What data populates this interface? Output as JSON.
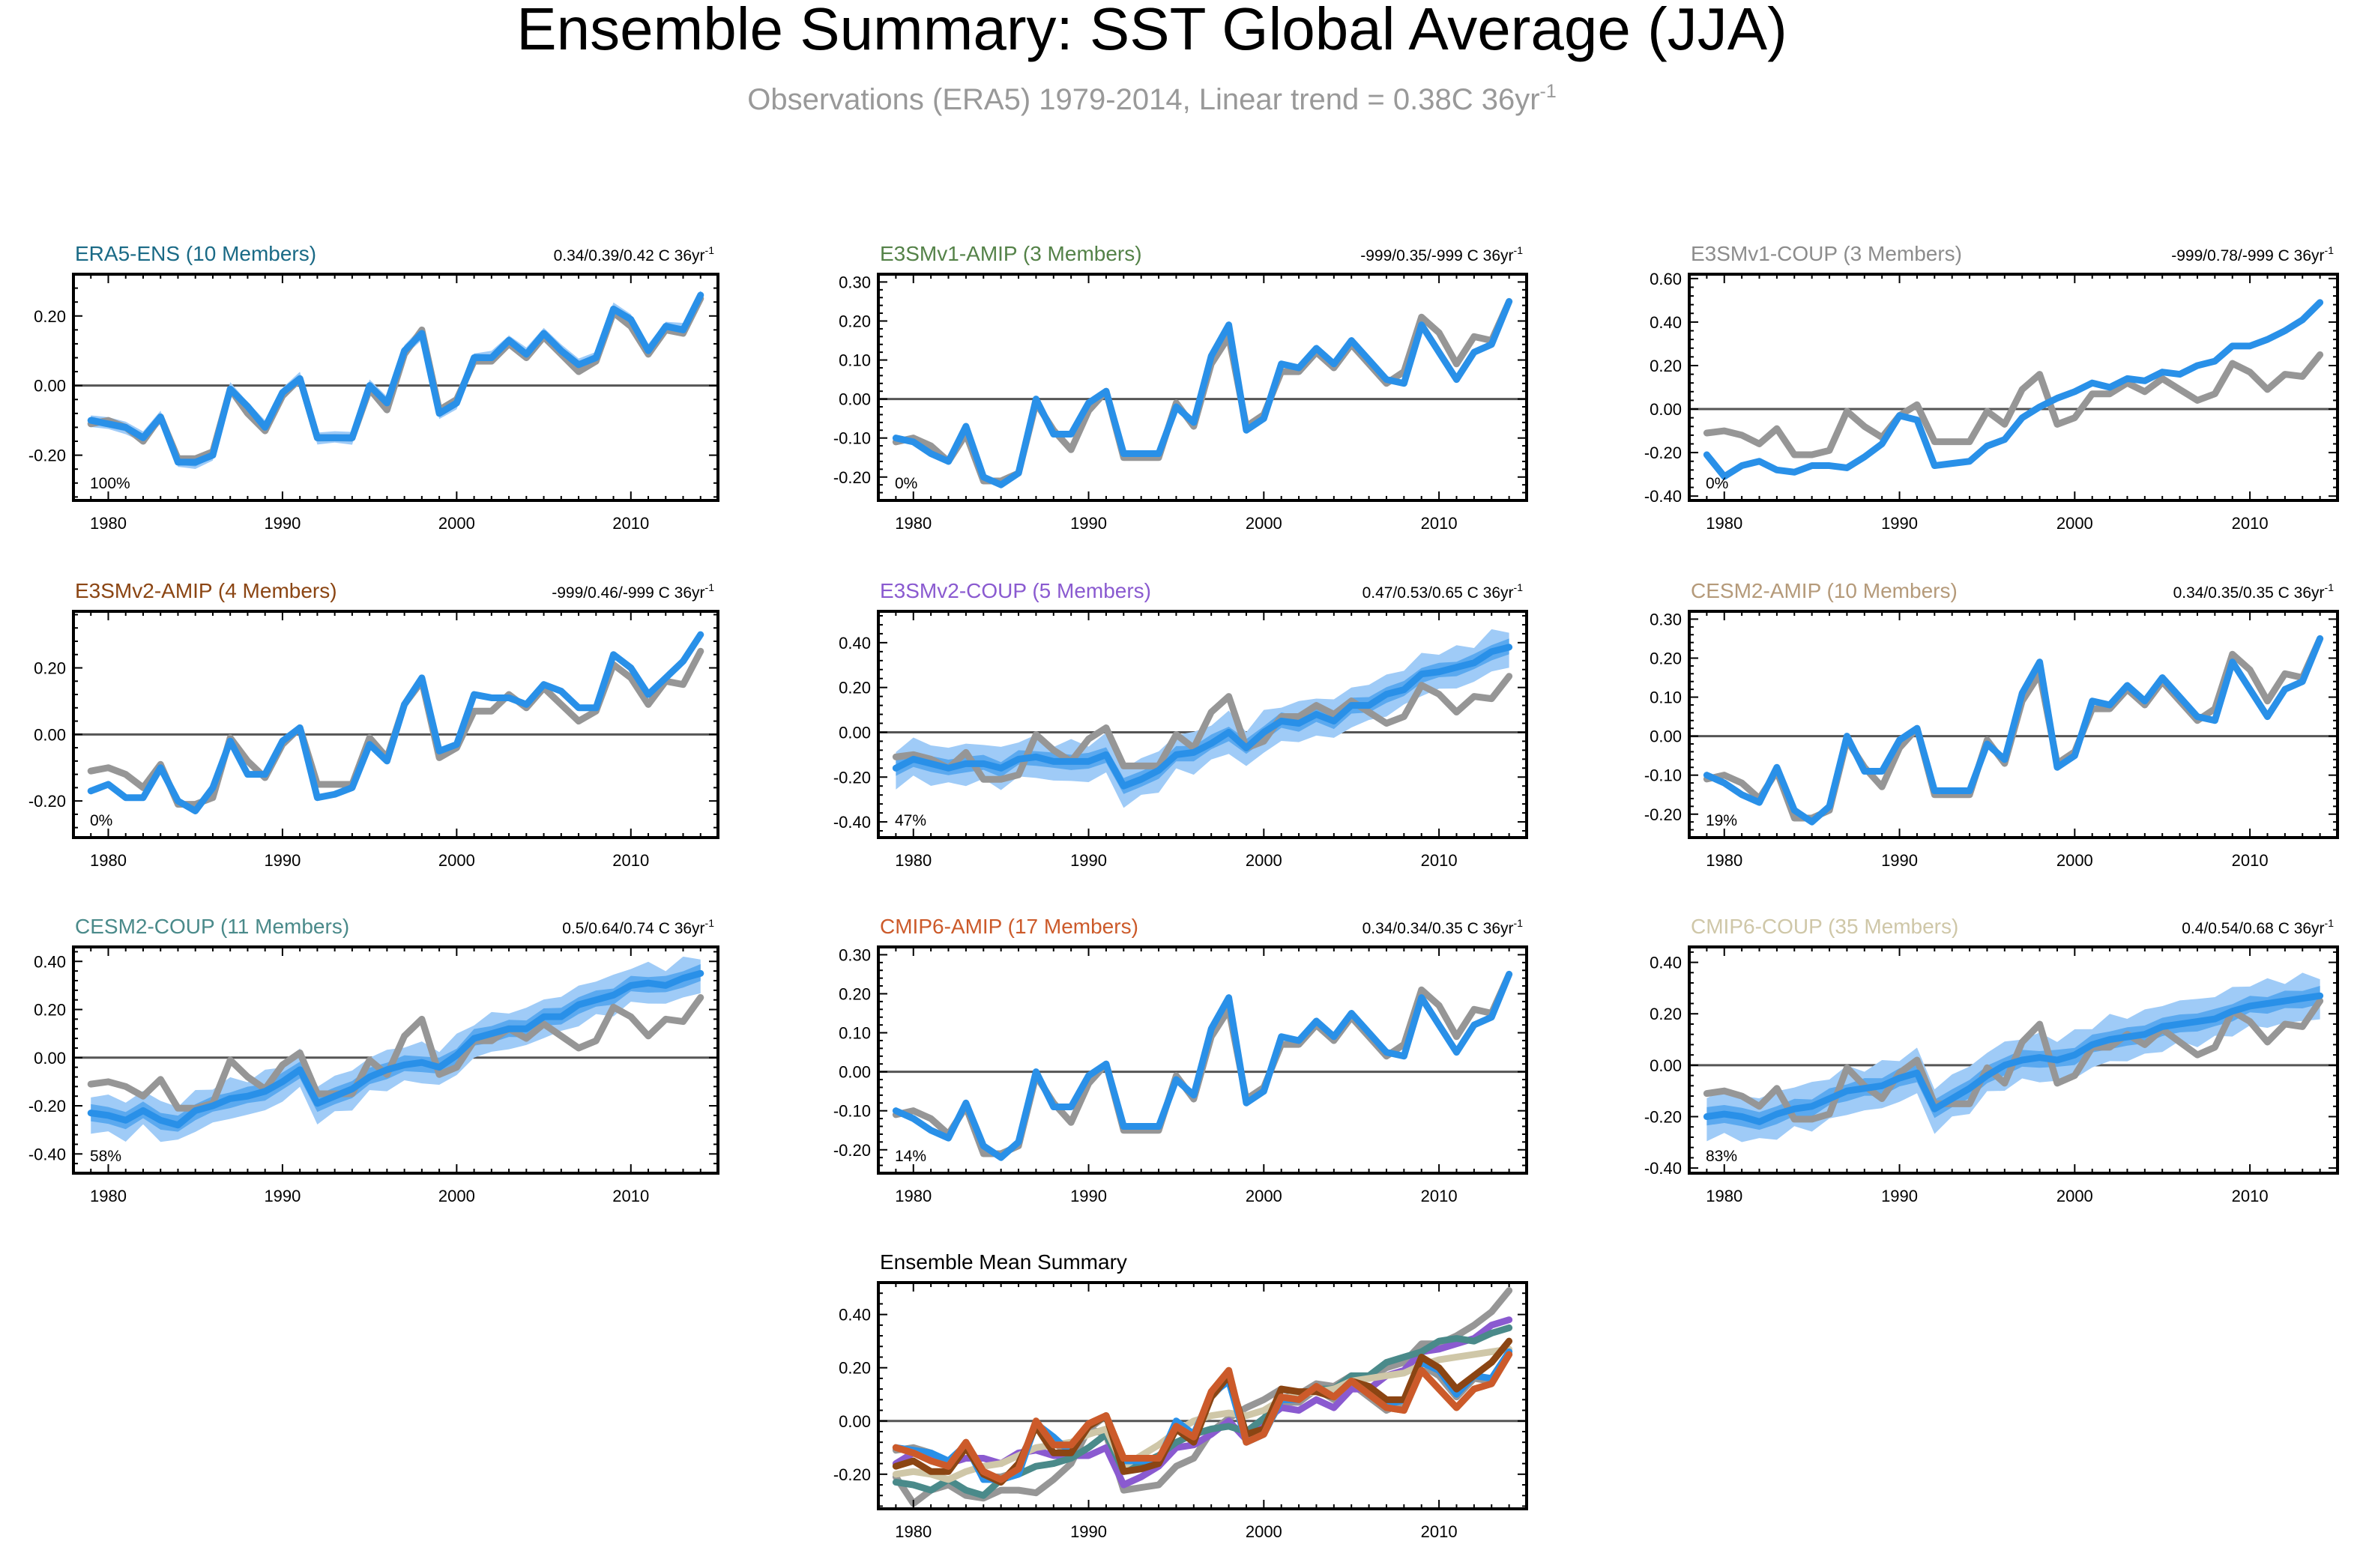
{
  "title": "Ensemble Summary: SST Global Average (JJA)",
  "subtitle": {
    "text": "Observations (ERA5) 1979-2014, Linear trend = 0.38C 36yr",
    "sup": "-1"
  },
  "chart_data": [
    {
      "type": "line",
      "title": "ERA5-ENS (10 Members)",
      "title_color": "#1a6a86",
      "trend": "0.34/0.39/0.42 C 36yr",
      "trend_sup": "-1",
      "percent": "100%",
      "xlim": [
        1978,
        2015
      ],
      "ylim": [
        -0.33,
        0.32
      ],
      "xticks": [
        1980,
        1990,
        2000,
        2010
      ],
      "yticks": [
        -0.2,
        0.0,
        0.2
      ],
      "obs": "obs",
      "mean": "era5_mean",
      "band": {
        "w": 0.02,
        "s": 0.012
      }
    },
    {
      "type": "line",
      "title": "E3SMv1-AMIP (3 Members)",
      "title_color": "#548248",
      "trend": "-999/0.35/-999 C 36yr",
      "trend_sup": "-1",
      "percent": "0%",
      "xlim": [
        1978,
        2015
      ],
      "ylim": [
        -0.26,
        0.32
      ],
      "xticks": [
        1980,
        1990,
        2000,
        2010
      ],
      "yticks": [
        -0.2,
        -0.1,
        0.0,
        0.1,
        0.2,
        0.3
      ],
      "obs": "obs",
      "mean": "e3v1amip",
      "band": null
    },
    {
      "type": "line",
      "title": "E3SMv1-COUP (3 Members)",
      "title_color": "#8c8c8c",
      "trend": "-999/0.78/-999 C 36yr",
      "trend_sup": "-1",
      "percent": "0%",
      "xlim": [
        1978,
        2015
      ],
      "ylim": [
        -0.42,
        0.62
      ],
      "xticks": [
        1980,
        1990,
        2000,
        2010
      ],
      "yticks": [
        -0.4,
        -0.2,
        0.0,
        0.2,
        0.4,
        0.6
      ],
      "obs": "obs",
      "mean": "e3v1coup",
      "band": null
    },
    {
      "type": "line",
      "title": "E3SMv2-AMIP (4 Members)",
      "title_color": "#8b4513",
      "trend": "-999/0.46/-999 C 36yr",
      "trend_sup": "-1",
      "percent": "0%",
      "xlim": [
        1978,
        2015
      ],
      "ylim": [
        -0.31,
        0.37
      ],
      "xticks": [
        1980,
        1990,
        2000,
        2010
      ],
      "yticks": [
        -0.2,
        0.0,
        0.2
      ],
      "obs": "obs",
      "mean": "e3v2amip",
      "band": null
    },
    {
      "type": "line",
      "title": "E3SMv2-COUP (5 Members)",
      "title_color": "#8a5ad0",
      "trend": "0.47/0.53/0.65 C 36yr",
      "trend_sup": "-1",
      "percent": "47%",
      "xlim": [
        1978,
        2015
      ],
      "ylim": [
        -0.47,
        0.54
      ],
      "xticks": [
        1980,
        1990,
        2000,
        2010
      ],
      "yticks": [
        -0.4,
        -0.2,
        0.0,
        0.2,
        0.4
      ],
      "obs": "obs",
      "mean": "e3v2coup",
      "band": {
        "w": 0.1,
        "s": 0.04
      }
    },
    {
      "type": "line",
      "title": "CESM2-AMIP (10 Members)",
      "title_color": "#b59a7a",
      "trend": "0.34/0.35/0.35 C 36yr",
      "trend_sup": "-1",
      "percent": "19%",
      "xlim": [
        1978,
        2015
      ],
      "ylim": [
        -0.26,
        0.32
      ],
      "xticks": [
        1980,
        1990,
        2000,
        2010
      ],
      "yticks": [
        -0.2,
        -0.1,
        0.0,
        0.1,
        0.2,
        0.3
      ],
      "obs": "obs",
      "mean": "cesmamip",
      "band": null
    },
    {
      "type": "line",
      "title": "CESM2-COUP (11 Members)",
      "title_color": "#4a8a8a",
      "trend": "0.5/0.64/0.74 C 36yr",
      "trend_sup": "-1",
      "percent": "58%",
      "xlim": [
        1978,
        2015
      ],
      "ylim": [
        -0.48,
        0.46
      ],
      "xticks": [
        1980,
        1990,
        2000,
        2010
      ],
      "yticks": [
        -0.4,
        -0.2,
        0.0,
        0.2,
        0.4
      ],
      "obs": "obs",
      "mean": "cesmcoup",
      "band": {
        "w": 0.09,
        "s": 0.04
      }
    },
    {
      "type": "line",
      "title": "CMIP6-AMIP (17 Members)",
      "title_color": "#cc5a2a",
      "trend": "0.34/0.34/0.35 C 36yr",
      "trend_sup": "-1",
      "percent": "14%",
      "xlim": [
        1978,
        2015
      ],
      "ylim": [
        -0.26,
        0.32
      ],
      "xticks": [
        1980,
        1990,
        2000,
        2010
      ],
      "yticks": [
        -0.2,
        -0.1,
        0.0,
        0.1,
        0.2,
        0.3
      ],
      "obs": "obs",
      "mean": "cmipamip",
      "band": null
    },
    {
      "type": "line",
      "title": "CMIP6-COUP (35 Members)",
      "title_color": "#cfc7a8",
      "trend": "0.4/0.54/0.68 C 36yr",
      "trend_sup": "-1",
      "percent": "83%",
      "xlim": [
        1978,
        2015
      ],
      "ylim": [
        -0.42,
        0.46
      ],
      "xticks": [
        1980,
        1990,
        2000,
        2010
      ],
      "yticks": [
        -0.4,
        -0.2,
        0.0,
        0.2,
        0.4
      ],
      "obs": "obs",
      "mean": "cmipcoup",
      "band": {
        "w": 0.1,
        "s": 0.04
      }
    },
    {
      "type": "line",
      "title": "Ensemble Mean Summary",
      "title_color": "#000000",
      "trend": "",
      "trend_sup": "",
      "percent": "",
      "xlim": [
        1978,
        2015
      ],
      "ylim": [
        -0.33,
        0.52
      ],
      "xticks": [
        1980,
        1990,
        2000,
        2010
      ],
      "yticks": [
        -0.2,
        0.0,
        0.2,
        0.4
      ],
      "summary": [
        "obs",
        "e3v1coup",
        "e3v2coup",
        "cesmcoup",
        "cmipcoup",
        "era5_mean",
        "e3v2amip",
        "cesmamip",
        "cmipamip"
      ]
    }
  ],
  "years": [
    1979,
    1980,
    1981,
    1982,
    1983,
    1984,
    1985,
    1986,
    1987,
    1988,
    1989,
    1990,
    1991,
    1992,
    1993,
    1994,
    1995,
    1996,
    1997,
    1998,
    1999,
    2000,
    2001,
    2002,
    2003,
    2004,
    2005,
    2006,
    2007,
    2008,
    2009,
    2010,
    2011,
    2012,
    2013,
    2014
  ],
  "series_values": {
    "obs": [
      -0.11,
      -0.1,
      -0.12,
      -0.16,
      -0.09,
      -0.21,
      -0.21,
      -0.19,
      -0.01,
      -0.08,
      -0.13,
      -0.03,
      0.02,
      -0.15,
      -0.15,
      -0.15,
      -0.01,
      -0.07,
      0.09,
      0.16,
      -0.07,
      -0.04,
      0.07,
      0.07,
      0.12,
      0.08,
      0.14,
      0.09,
      0.04,
      0.07,
      0.21,
      0.17,
      0.09,
      0.16,
      0.15,
      0.25
    ],
    "era5_mean": [
      -0.1,
      -0.11,
      -0.12,
      -0.15,
      -0.09,
      -0.22,
      -0.22,
      -0.2,
      -0.01,
      -0.06,
      -0.12,
      -0.02,
      0.02,
      -0.15,
      -0.15,
      -0.15,
      0.0,
      -0.05,
      0.1,
      0.15,
      -0.08,
      -0.05,
      0.08,
      0.08,
      0.13,
      0.09,
      0.15,
      0.1,
      0.06,
      0.08,
      0.22,
      0.19,
      0.1,
      0.17,
      0.16,
      0.26
    ],
    "e3v1amip": [
      -0.1,
      -0.11,
      -0.14,
      -0.16,
      -0.07,
      -0.2,
      -0.22,
      -0.19,
      0.0,
      -0.09,
      -0.09,
      -0.01,
      0.02,
      -0.14,
      -0.14,
      -0.14,
      -0.02,
      -0.06,
      0.11,
      0.19,
      -0.08,
      -0.05,
      0.09,
      0.08,
      0.13,
      0.09,
      0.15,
      0.1,
      0.05,
      0.04,
      0.19,
      0.12,
      0.05,
      0.12,
      0.14,
      0.25
    ],
    "e3v1coup": [
      -0.21,
      -0.31,
      -0.26,
      -0.24,
      -0.28,
      -0.29,
      -0.26,
      -0.26,
      -0.27,
      -0.22,
      -0.16,
      -0.03,
      -0.05,
      -0.26,
      -0.25,
      -0.24,
      -0.17,
      -0.14,
      -0.04,
      0.01,
      0.05,
      0.08,
      0.12,
      0.1,
      0.14,
      0.13,
      0.17,
      0.16,
      0.2,
      0.22,
      0.29,
      0.29,
      0.32,
      0.36,
      0.41,
      0.49
    ],
    "e3v2amip": [
      -0.17,
      -0.15,
      -0.19,
      -0.19,
      -0.1,
      -0.2,
      -0.23,
      -0.16,
      -0.02,
      -0.12,
      -0.12,
      -0.02,
      0.02,
      -0.19,
      -0.18,
      -0.16,
      -0.03,
      -0.08,
      0.09,
      0.17,
      -0.05,
      -0.03,
      0.12,
      0.11,
      0.11,
      0.09,
      0.15,
      0.13,
      0.08,
      0.08,
      0.24,
      0.2,
      0.12,
      0.17,
      0.22,
      0.3
    ],
    "e3v2coup": [
      -0.16,
      -0.12,
      -0.14,
      -0.16,
      -0.14,
      -0.14,
      -0.16,
      -0.12,
      -0.11,
      -0.13,
      -0.13,
      -0.13,
      -0.1,
      -0.24,
      -0.21,
      -0.17,
      -0.1,
      -0.09,
      -0.05,
      0.0,
      -0.07,
      0.0,
      0.05,
      0.04,
      0.08,
      0.05,
      0.12,
      0.12,
      0.17,
      0.19,
      0.26,
      0.27,
      0.29,
      0.31,
      0.36,
      0.38
    ],
    "cesmamip": [
      -0.1,
      -0.12,
      -0.15,
      -0.17,
      -0.08,
      -0.19,
      -0.22,
      -0.18,
      0.0,
      -0.09,
      -0.09,
      -0.01,
      0.02,
      -0.14,
      -0.14,
      -0.14,
      -0.02,
      -0.06,
      0.11,
      0.19,
      -0.08,
      -0.05,
      0.09,
      0.08,
      0.13,
      0.09,
      0.15,
      0.1,
      0.05,
      0.04,
      0.19,
      0.12,
      0.05,
      0.12,
      0.14,
      0.25
    ],
    "cesmcoup": [
      -0.23,
      -0.24,
      -0.26,
      -0.22,
      -0.26,
      -0.28,
      -0.22,
      -0.2,
      -0.17,
      -0.16,
      -0.14,
      -0.1,
      -0.05,
      -0.19,
      -0.16,
      -0.13,
      -0.08,
      -0.05,
      -0.03,
      -0.02,
      -0.04,
      0.01,
      0.08,
      0.1,
      0.12,
      0.12,
      0.17,
      0.17,
      0.22,
      0.24,
      0.26,
      0.3,
      0.31,
      0.3,
      0.33,
      0.35
    ],
    "cmipamip": [
      -0.1,
      -0.12,
      -0.15,
      -0.17,
      -0.08,
      -0.19,
      -0.22,
      -0.18,
      0.0,
      -0.09,
      -0.09,
      -0.01,
      0.02,
      -0.14,
      -0.14,
      -0.14,
      -0.02,
      -0.06,
      0.11,
      0.19,
      -0.08,
      -0.05,
      0.09,
      0.08,
      0.13,
      0.09,
      0.15,
      0.1,
      0.05,
      0.04,
      0.19,
      0.12,
      0.05,
      0.12,
      0.14,
      0.25
    ],
    "cmipcoup": [
      -0.2,
      -0.19,
      -0.2,
      -0.22,
      -0.19,
      -0.17,
      -0.16,
      -0.13,
      -0.1,
      -0.09,
      -0.08,
      -0.05,
      -0.03,
      -0.17,
      -0.13,
      -0.09,
      -0.04,
      0.0,
      0.02,
      0.03,
      0.02,
      0.04,
      0.08,
      0.1,
      0.11,
      0.12,
      0.15,
      0.16,
      0.17,
      0.18,
      0.21,
      0.23,
      0.24,
      0.25,
      0.26,
      0.27
    ]
  },
  "series_colors": {
    "obs": "#969696",
    "era5_mean": "#2990e8",
    "e3v1amip": "#2990e8",
    "e3v1coup": "#969696",
    "e3v2amip": "#8b4513",
    "e3v2coup": "#8a5ad0",
    "cesmamip": "#b59a7a",
    "cesmcoup": "#4a8a8a",
    "cmipamip": "#cc5a2a",
    "cmipcoup": "#cfc7a8"
  },
  "colors": {
    "model": "#2990e8",
    "band_outer": "#9fcbf7",
    "band_inner": "#5ba9ef",
    "obs": "#969696",
    "zero": "#555555"
  }
}
